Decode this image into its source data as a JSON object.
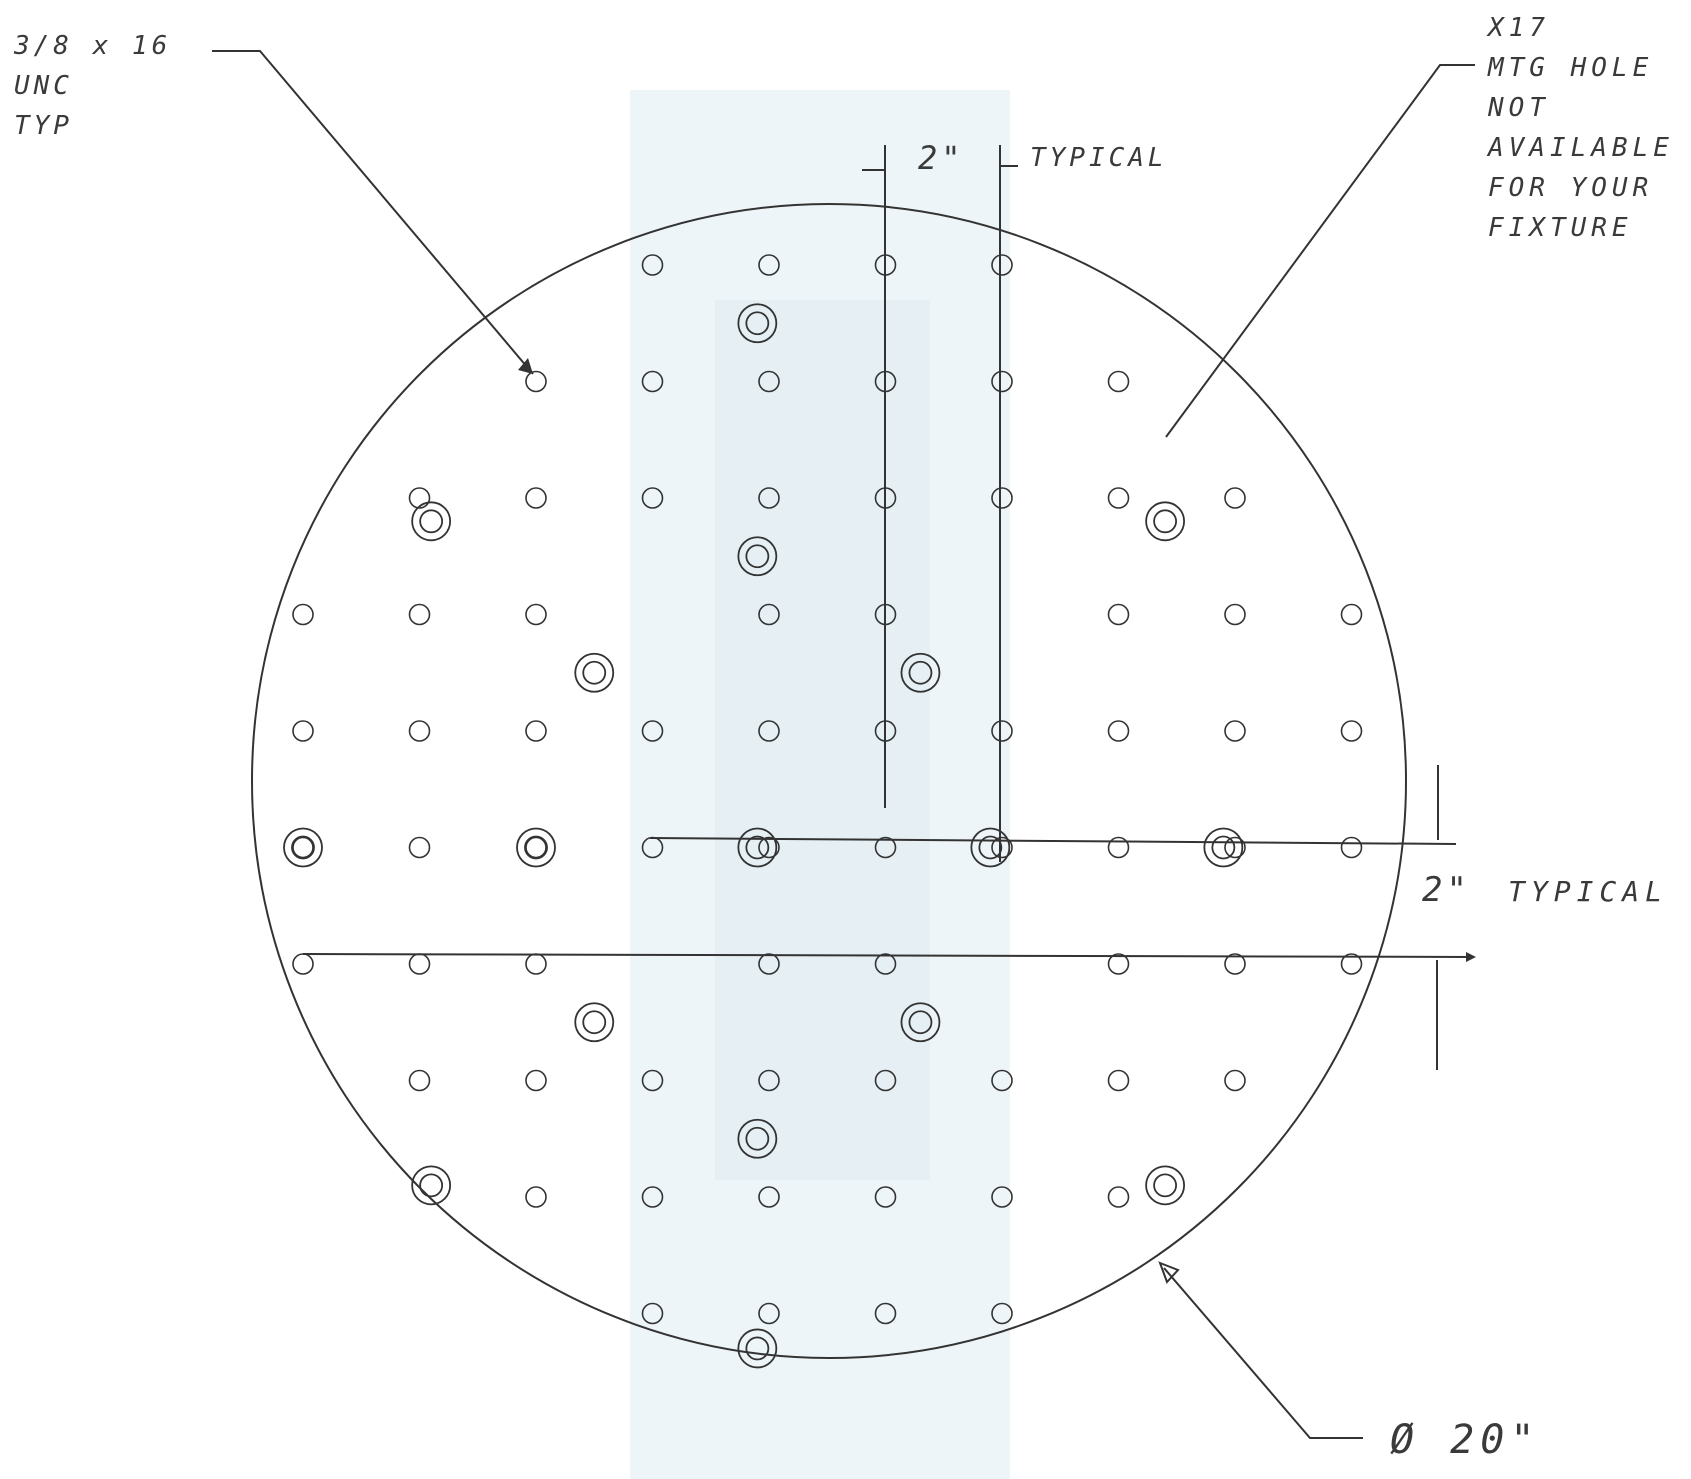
{
  "annotations": {
    "thread_callout": [
      "3/8 x 16",
      "UNC",
      "TYP"
    ],
    "mounting_callout": [
      "X17",
      "MTG HOLE",
      "NOT",
      "AVAILABLE",
      "FOR YOUR",
      "FIXTURE"
    ],
    "vertical_spacing": {
      "value": "2\"",
      "label": "TYPICAL"
    },
    "horizontal_spacing": {
      "value": "2\"",
      "label": "TYPICAL"
    },
    "diameter": "Ø 20\""
  },
  "plate": {
    "diameter_in": 20,
    "grid_spacing_in": 2,
    "tapped_holes": [
      {
        "col": 4,
        "row": 0
      },
      {
        "col": 5,
        "row": 0
      },
      {
        "col": 6,
        "row": 0
      },
      {
        "col": 7,
        "row": 0
      },
      {
        "col": 3,
        "row": 1
      },
      {
        "col": 4,
        "row": 1
      },
      {
        "col": 5,
        "row": 1
      },
      {
        "col": 6,
        "row": 1
      },
      {
        "col": 7,
        "row": 1
      },
      {
        "col": 8,
        "row": 1
      },
      {
        "col": 2,
        "row": 2
      },
      {
        "col": 3,
        "row": 2
      },
      {
        "col": 4,
        "row": 2
      },
      {
        "col": 5,
        "row": 2
      },
      {
        "col": 6,
        "row": 2
      },
      {
        "col": 7,
        "row": 2
      },
      {
        "col": 8,
        "row": 2
      },
      {
        "col": 9,
        "row": 2
      },
      {
        "col": 1,
        "row": 3
      },
      {
        "col": 2,
        "row": 3
      },
      {
        "col": 3,
        "row": 3
      },
      {
        "col": 5,
        "row": 3
      },
      {
        "col": 6,
        "row": 3
      },
      {
        "col": 8,
        "row": 3
      },
      {
        "col": 9,
        "row": 3
      },
      {
        "col": 10,
        "row": 3
      },
      {
        "col": 1,
        "row": 4
      },
      {
        "col": 2,
        "row": 4
      },
      {
        "col": 3,
        "row": 4
      },
      {
        "col": 4,
        "row": 4
      },
      {
        "col": 5,
        "row": 4
      },
      {
        "col": 6,
        "row": 4
      },
      {
        "col": 7,
        "row": 4
      },
      {
        "col": 8,
        "row": 4
      },
      {
        "col": 9,
        "row": 4
      },
      {
        "col": 10,
        "row": 4
      },
      {
        "col": 1,
        "row": 5
      },
      {
        "col": 2,
        "row": 5
      },
      {
        "col": 3,
        "row": 5
      },
      {
        "col": 4,
        "row": 5
      },
      {
        "col": 5,
        "row": 5
      },
      {
        "col": 6,
        "row": 5
      },
      {
        "col": 7,
        "row": 5
      },
      {
        "col": 8,
        "row": 5
      },
      {
        "col": 9,
        "row": 5
      },
      {
        "col": 10,
        "row": 5
      },
      {
        "col": 1,
        "row": 6
      },
      {
        "col": 2,
        "row": 6
      },
      {
        "col": 3,
        "row": 6
      },
      {
        "col": 5,
        "row": 6
      },
      {
        "col": 6,
        "row": 6
      },
      {
        "col": 8,
        "row": 6
      },
      {
        "col": 9,
        "row": 6
      },
      {
        "col": 10,
        "row": 6
      },
      {
        "col": 2,
        "row": 7
      },
      {
        "col": 3,
        "row": 7
      },
      {
        "col": 4,
        "row": 7
      },
      {
        "col": 5,
        "row": 7
      },
      {
        "col": 6,
        "row": 7
      },
      {
        "col": 7,
        "row": 7
      },
      {
        "col": 8,
        "row": 7
      },
      {
        "col": 9,
        "row": 7
      },
      {
        "col": 3,
        "row": 8
      },
      {
        "col": 4,
        "row": 8
      },
      {
        "col": 5,
        "row": 8
      },
      {
        "col": 6,
        "row": 8
      },
      {
        "col": 7,
        "row": 8
      },
      {
        "col": 8,
        "row": 8
      },
      {
        "col": 4,
        "row": 9
      },
      {
        "col": 5,
        "row": 9
      },
      {
        "col": 6,
        "row": 9
      },
      {
        "col": 7,
        "row": 9
      }
    ],
    "mounting_holes": [
      {
        "x_in": 4.4,
        "y_in": 1.0
      },
      {
        "x_in": 1.6,
        "y_in": 2.7
      },
      {
        "x_in": 7.9,
        "y_in": 2.7
      },
      {
        "x_in": 4.4,
        "y_in": 3.0
      },
      {
        "x_in": 3.0,
        "y_in": 4.0
      },
      {
        "x_in": 5.8,
        "y_in": 4.0
      },
      {
        "x_in": 0.5,
        "y_in": 5.5
      },
      {
        "x_in": 2.5,
        "y_in": 5.5
      },
      {
        "x_in": 4.4,
        "y_in": 5.5
      },
      {
        "x_in": 6.4,
        "y_in": 5.5
      },
      {
        "x_in": 8.4,
        "y_in": 5.5
      },
      {
        "x_in": 3.0,
        "y_in": 7.0
      },
      {
        "x_in": 5.8,
        "y_in": 7.0
      },
      {
        "x_in": 4.4,
        "y_in": 8.0
      },
      {
        "x_in": 1.6,
        "y_in": 8.4
      },
      {
        "x_in": 7.9,
        "y_in": 8.4
      },
      {
        "x_in": 4.4,
        "y_in": 9.8
      }
    ]
  }
}
